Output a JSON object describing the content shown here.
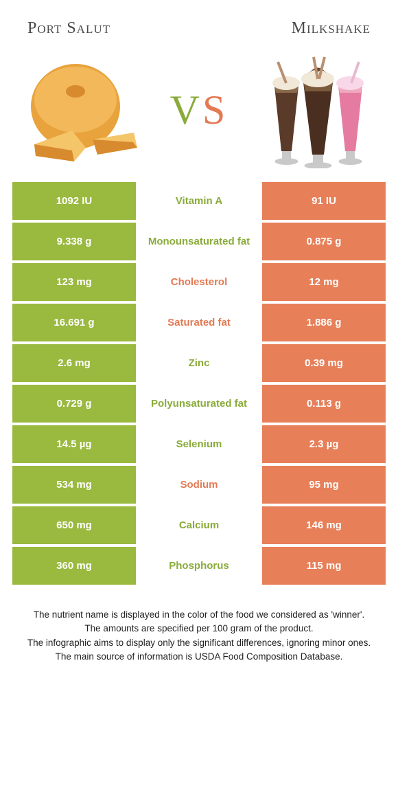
{
  "header": {
    "left_title": "Port Salut",
    "right_title": "Milkshake"
  },
  "vs": {
    "v": "V",
    "s": "S"
  },
  "colors": {
    "left": "#9ab93f",
    "right": "#e77f59",
    "mid_left_text": "#8aab3a",
    "mid_right_text": "#e27a54"
  },
  "rows": [
    {
      "left": "1092 IU",
      "label": "Vitamin A",
      "right": "91 IU",
      "winner": "left"
    },
    {
      "left": "9.338 g",
      "label": "Monounsaturated fat",
      "right": "0.875 g",
      "winner": "left"
    },
    {
      "left": "123 mg",
      "label": "Cholesterol",
      "right": "12 mg",
      "winner": "right"
    },
    {
      "left": "16.691 g",
      "label": "Saturated fat",
      "right": "1.886 g",
      "winner": "right"
    },
    {
      "left": "2.6 mg",
      "label": "Zinc",
      "right": "0.39 mg",
      "winner": "left"
    },
    {
      "left": "0.729 g",
      "label": "Polyunsaturated fat",
      "right": "0.113 g",
      "winner": "left"
    },
    {
      "left": "14.5 µg",
      "label": "Selenium",
      "right": "2.3 µg",
      "winner": "left"
    },
    {
      "left": "534 mg",
      "label": "Sodium",
      "right": "95 mg",
      "winner": "right"
    },
    {
      "left": "650 mg",
      "label": "Calcium",
      "right": "146 mg",
      "winner": "left"
    },
    {
      "left": "360 mg",
      "label": "Phosphorus",
      "right": "115 mg",
      "winner": "left"
    }
  ],
  "footer": {
    "l1": "The nutrient name is displayed in the color of the food we considered as 'winner'.",
    "l2": "The amounts are specified per 100 gram of the product.",
    "l3": "The infographic aims to display only the significant differences, ignoring minor ones.",
    "l4": "The main source of information is USDA Food Composition Database."
  }
}
